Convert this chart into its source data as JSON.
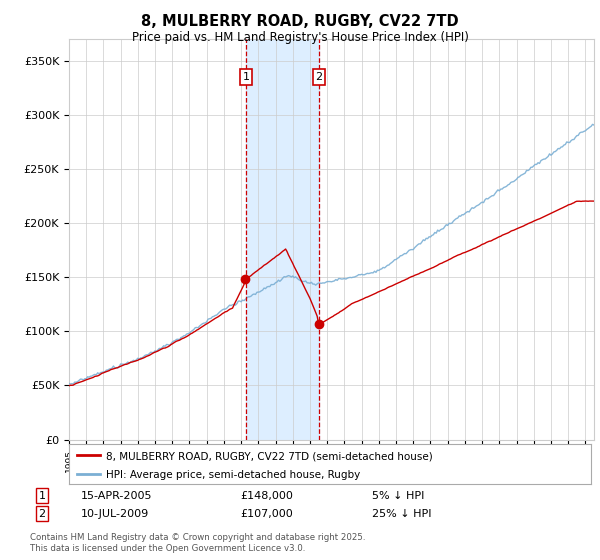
{
  "title": "8, MULBERRY ROAD, RUGBY, CV22 7TD",
  "subtitle": "Price paid vs. HM Land Registry's House Price Index (HPI)",
  "ylabel_ticks": [
    "£0",
    "£50K",
    "£100K",
    "£150K",
    "£200K",
    "£250K",
    "£300K",
    "£350K"
  ],
  "ytick_values": [
    0,
    50000,
    100000,
    150000,
    200000,
    250000,
    300000,
    350000
  ],
  "ylim": [
    0,
    370000
  ],
  "xlim_start": 1995.0,
  "xlim_end": 2025.5,
  "transaction1": {
    "date": "15-APR-2005",
    "price": 148000,
    "hpi_diff": "5% ↓ HPI",
    "x": 2005.28,
    "label": "1"
  },
  "transaction2": {
    "date": "10-JUL-2009",
    "price": 107000,
    "hpi_diff": "25% ↓ HPI",
    "x": 2009.53,
    "label": "2"
  },
  "legend_label_red": "8, MULBERRY ROAD, RUGBY, CV22 7TD (semi-detached house)",
  "legend_label_blue": "HPI: Average price, semi-detached house, Rugby",
  "footer": "Contains HM Land Registry data © Crown copyright and database right 2025.\nThis data is licensed under the Open Government Licence v3.0.",
  "red_color": "#cc0000",
  "blue_color": "#7bafd4",
  "shading_color": "#ddeeff",
  "grid_color": "#cccccc",
  "bg_color": "#ffffff"
}
